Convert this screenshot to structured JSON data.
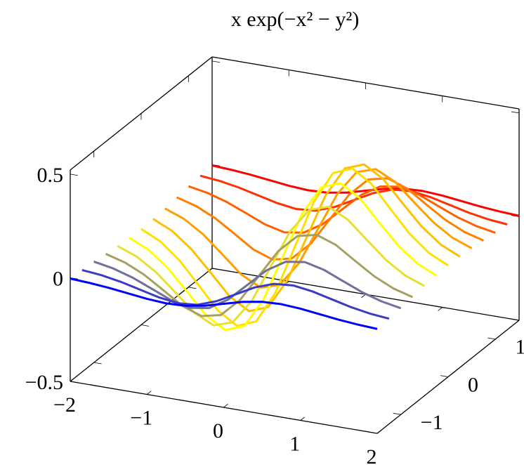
{
  "chart_data": {
    "type": "mesh3d",
    "title": "x exp(−x² − y²)",
    "x": [
      -2,
      -1.75,
      -1.5,
      -1.25,
      -1,
      -0.75,
      -0.5,
      -0.25,
      0,
      0.25,
      0.5,
      0.75,
      1,
      1.25,
      1.5,
      1.75,
      2
    ],
    "series": [
      {
        "y": -1.5,
        "color": "#0000ff",
        "values": [
          -0.004,
          -0.009,
          -0.017,
          -0.028,
          -0.039,
          -0.045,
          -0.041,
          -0.025,
          0,
          0.025,
          0.041,
          0.045,
          0.039,
          0.028,
          0.017,
          0.009,
          0.004
        ]
      },
      {
        "y": -1.25,
        "color": "#3b3bc8",
        "values": [
          -0.008,
          -0.017,
          -0.033,
          -0.055,
          -0.077,
          -0.09,
          -0.082,
          -0.049,
          0,
          0.049,
          0.082,
          0.09,
          0.077,
          0.055,
          0.033,
          0.017,
          0.008
        ]
      },
      {
        "y": -1,
        "color": "#70709a",
        "values": [
          -0.013,
          -0.03,
          -0.058,
          -0.096,
          -0.135,
          -0.157,
          -0.143,
          -0.086,
          0,
          0.086,
          0.143,
          0.157,
          0.135,
          0.096,
          0.058,
          0.03,
          0.013
        ]
      },
      {
        "y": -0.75,
        "color": "#a8a060",
        "values": [
          -0.021,
          -0.047,
          -0.09,
          -0.149,
          -0.21,
          -0.243,
          -0.222,
          -0.134,
          0,
          0.134,
          0.222,
          0.243,
          0.21,
          0.149,
          0.09,
          0.047,
          0.021
        ]
      },
      {
        "y": -0.5,
        "color": "#e6e030",
        "values": [
          -0.029,
          -0.064,
          -0.123,
          -0.204,
          -0.287,
          -0.333,
          -0.303,
          -0.183,
          0,
          0.183,
          0.303,
          0.333,
          0.287,
          0.204,
          0.123,
          0.064,
          0.029
        ]
      },
      {
        "y": -0.25,
        "color": "#ffff00",
        "values": [
          -0.034,
          -0.077,
          -0.149,
          -0.246,
          -0.346,
          -0.401,
          -0.366,
          -0.221,
          0,
          0.221,
          0.366,
          0.401,
          0.346,
          0.246,
          0.149,
          0.077,
          0.034
        ]
      },
      {
        "y": 0,
        "color": "#ffe000",
        "values": [
          -0.037,
          -0.082,
          -0.158,
          -0.262,
          -0.368,
          -0.427,
          -0.389,
          -0.235,
          0,
          0.235,
          0.389,
          0.427,
          0.368,
          0.262,
          0.158,
          0.082,
          0.037
        ]
      },
      {
        "y": 0.25,
        "color": "#ffc000",
        "values": [
          -0.034,
          -0.077,
          -0.149,
          -0.246,
          -0.346,
          -0.401,
          -0.366,
          -0.221,
          0,
          0.221,
          0.366,
          0.401,
          0.346,
          0.246,
          0.149,
          0.077,
          0.034
        ]
      },
      {
        "y": 0.5,
        "color": "#ffa000",
        "values": [
          -0.029,
          -0.064,
          -0.123,
          -0.204,
          -0.287,
          -0.333,
          -0.303,
          -0.183,
          0,
          0.183,
          0.303,
          0.333,
          0.287,
          0.204,
          0.123,
          0.064,
          0.029
        ]
      },
      {
        "y": 0.75,
        "color": "#ff8000",
        "values": [
          -0.021,
          -0.047,
          -0.09,
          -0.149,
          -0.21,
          -0.243,
          -0.222,
          -0.134,
          0,
          0.134,
          0.222,
          0.243,
          0.21,
          0.149,
          0.09,
          0.047,
          0.021
        ]
      },
      {
        "y": 1,
        "color": "#ff6000",
        "values": [
          -0.013,
          -0.03,
          -0.058,
          -0.096,
          -0.135,
          -0.157,
          -0.143,
          -0.086,
          0,
          0.086,
          0.143,
          0.157,
          0.135,
          0.096,
          0.058,
          0.03,
          0.013
        ]
      },
      {
        "y": 1.25,
        "color": "#ff3000",
        "values": [
          -0.008,
          -0.017,
          -0.033,
          -0.055,
          -0.077,
          -0.09,
          -0.082,
          -0.049,
          0,
          0.049,
          0.082,
          0.09,
          0.077,
          0.055,
          0.033,
          0.017,
          0.008
        ]
      },
      {
        "y": 1.5,
        "color": "#ff0000",
        "values": [
          -0.004,
          -0.009,
          -0.017,
          -0.028,
          -0.039,
          -0.045,
          -0.041,
          -0.025,
          0,
          0.025,
          0.041,
          0.045,
          0.039,
          0.028,
          0.017,
          0.009,
          0.004
        ]
      }
    ],
    "xlim": [
      -2,
      2
    ],
    "xticks": [
      {
        "value": -2,
        "label": "−2"
      },
      {
        "value": -1,
        "label": "−1"
      },
      0,
      1,
      2
    ],
    "ylim": [
      -1.5,
      1.5
    ],
    "yticks": [
      {
        "value": -1,
        "label": "−1"
      },
      0,
      1
    ],
    "zlim": [
      -0.5,
      0.52
    ],
    "zticks": [
      {
        "value": -0.5,
        "label": "−0.5"
      },
      0,
      0.5
    ]
  }
}
